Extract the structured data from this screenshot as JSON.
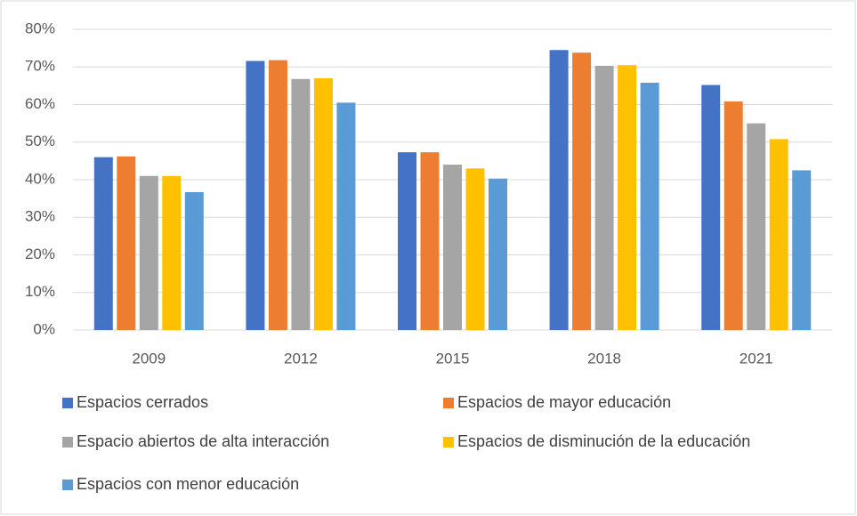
{
  "chart_data": {
    "type": "bar",
    "categories": [
      "2009",
      "2012",
      "2015",
      "2018",
      "2021"
    ],
    "series": [
      {
        "name": "Espacios cerrados",
        "color": "#4472c4",
        "values": [
          46,
          71.6,
          47.3,
          74.5,
          65.2
        ]
      },
      {
        "name": "Espacios de mayor educación",
        "color": "#ed7d31",
        "values": [
          46.2,
          71.8,
          47.3,
          73.8,
          60.8
        ]
      },
      {
        "name": "Espacio abiertos de alta interacción",
        "color": "#a5a5a5",
        "values": [
          41,
          66.8,
          44,
          70.3,
          55
        ]
      },
      {
        "name": "Espacios de disminución de la educación",
        "color": "#ffc000",
        "values": [
          41,
          67,
          43,
          70.5,
          50.8
        ]
      },
      {
        "name": "Espacios con menor educación",
        "color": "#5b9bd5",
        "values": [
          36.7,
          60.5,
          40.3,
          65.8,
          42.5
        ]
      }
    ],
    "ylim": [
      0,
      80
    ],
    "yticks": [
      {
        "value": 0,
        "label": "0%"
      },
      {
        "value": 10,
        "label": "10%"
      },
      {
        "value": 20,
        "label": "20%"
      },
      {
        "value": 30,
        "label": "30%"
      },
      {
        "value": 40,
        "label": "40%"
      },
      {
        "value": 50,
        "label": "50%"
      },
      {
        "value": 60,
        "label": "60%"
      },
      {
        "value": 70,
        "label": "70%"
      },
      {
        "value": 80,
        "label": "80%"
      }
    ],
    "grid": true,
    "legend": "bottom"
  }
}
